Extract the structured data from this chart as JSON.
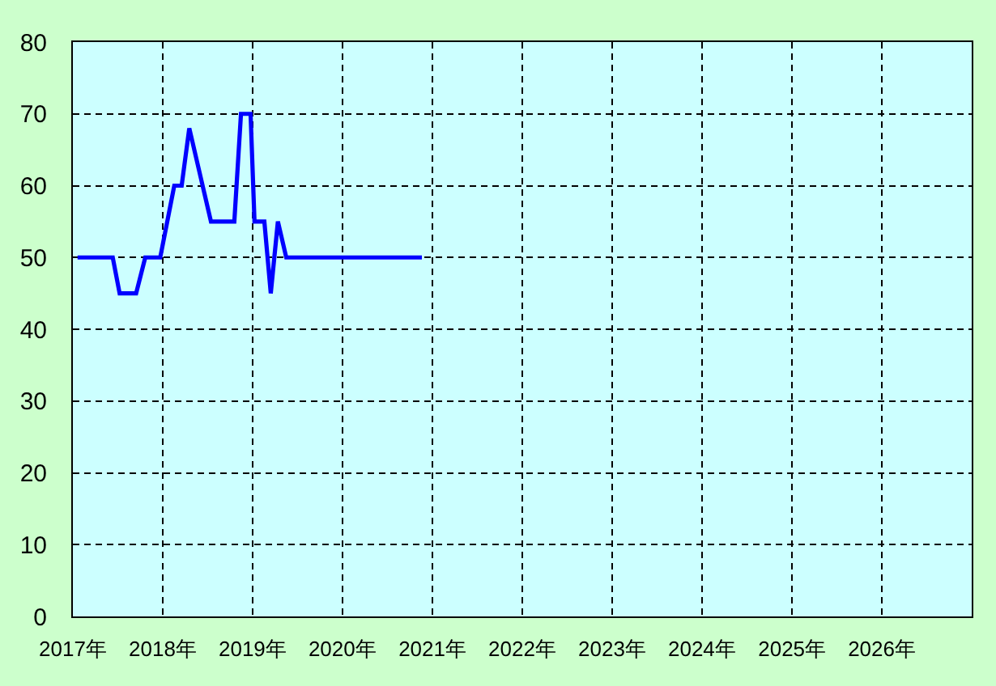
{
  "chart_data": {
    "type": "line",
    "x": [
      "2017-01-20",
      "2017-06-12",
      "2017-07-10",
      "2017-09-15",
      "2017-10-22",
      "2017-12-22",
      "2018-02-17",
      "2018-03-19",
      "2018-04-19",
      "2018-07-16",
      "2018-10-19",
      "2018-11-15",
      "2018-12-24",
      "2019-01-09",
      "2019-02-18",
      "2019-03-16",
      "2019-04-14",
      "2019-05-18",
      "2020-11-19"
    ],
    "values": [
      50,
      50,
      45,
      45,
      50,
      50,
      60,
      60,
      68,
      55,
      55,
      70,
      70,
      55,
      55,
      45,
      55,
      50,
      50
    ],
    "color": "#0000ff",
    "line_style": "solid",
    "xlim": [
      "2017-01-01",
      "2027-01-01"
    ],
    "xticks": [
      {
        "value": "2017",
        "label": "2017年"
      },
      {
        "value": "2018",
        "label": "2018年"
      },
      {
        "value": "2019",
        "label": "2019年"
      },
      {
        "value": "2020",
        "label": "2020年"
      },
      {
        "value": "2021",
        "label": "2021年"
      },
      {
        "value": "2022",
        "label": "2022年"
      },
      {
        "value": "2023",
        "label": "2023年"
      },
      {
        "value": "2024",
        "label": "2024年"
      },
      {
        "value": "2025",
        "label": "2025年"
      },
      {
        "value": "2026",
        "label": "2026年"
      }
    ],
    "ylim": [
      0,
      80
    ],
    "yticks": [
      0,
      10,
      20,
      30,
      40,
      50,
      60,
      70,
      80
    ],
    "grid": true
  }
}
